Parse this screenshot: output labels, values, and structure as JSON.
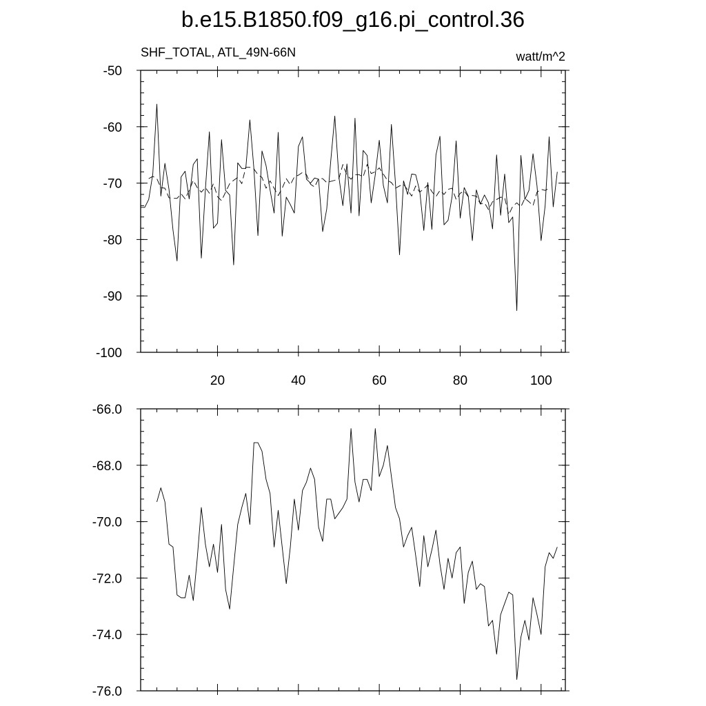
{
  "chart_data": [
    {
      "type": "line",
      "title": "b.e15.B1850.f09_g16.pi_control.36",
      "left_string": "SHF_TOTAL, ATL_49N-66N",
      "right_string": "watt/m^2",
      "xlim": [
        1,
        106
      ],
      "ylim": [
        -100,
        -50
      ],
      "xticks": [
        20,
        40,
        60,
        80,
        100
      ],
      "yticks": [
        -100,
        -90,
        -80,
        -70,
        -60,
        -50
      ],
      "ytick_labels": [
        "-100",
        "-90",
        "-80",
        "-70",
        "-60",
        "-50"
      ],
      "xtick_labels": [
        "20",
        "40",
        "60",
        "80",
        "100"
      ],
      "grid": false,
      "series": [
        {
          "style": "solid",
          "x_start": 1,
          "values": [
            -74.3,
            -74.3,
            -72.9,
            -68.4,
            -56.0,
            -72.3,
            -66.5,
            -71.1,
            -78.3,
            -83.8,
            -68.9,
            -67.9,
            -72.8,
            -66.7,
            -65.7,
            -83.3,
            -71.1,
            -60.9,
            -78.0,
            -77.1,
            -62.3,
            -71.3,
            -72.1,
            -84.5,
            -66.4,
            -67.4,
            -67.4,
            -58.8,
            -67.5,
            -79.3,
            -64.3,
            -66.9,
            -71.2,
            -75.3,
            -61.0,
            -79.4,
            -72.5,
            -73.8,
            -75.3,
            -63.5,
            -61.8,
            -69.3,
            -70.0,
            -69.1,
            -69.3,
            -78.6,
            -74.6,
            -66.1,
            -58.1,
            -68.9,
            -74.0,
            -66.6,
            -75.3,
            -58.5,
            -75.8,
            -64.2,
            -65.1,
            -73.5,
            -68.5,
            -62.4,
            -70.4,
            -73.5,
            -59.6,
            -70.1,
            -82.7,
            -69.6,
            -72.0,
            -68.4,
            -68.5,
            -71.4,
            -78.4,
            -69.9,
            -78.2,
            -65.0,
            -61.7,
            -77.4,
            -76.6,
            -72.4,
            -62.5,
            -76.2,
            -70.8,
            -72.3,
            -80.2,
            -71.2,
            -73.7,
            -72.1,
            -73.5,
            -78.1,
            -65.0,
            -75.7,
            -68.4,
            -77.0,
            -76.0,
            -92.6,
            -65.1,
            -72.9,
            -71.3,
            -64.8,
            -70.5,
            -80.2,
            -74.0,
            -61.8,
            -74.2,
            -68.0
          ]
        },
        {
          "style": "dashed",
          "x_start": 3,
          "values": [
            -69.2,
            -68.8,
            -69.2,
            -70.8,
            -70.9,
            -72.6,
            -72.7,
            -72.7,
            -71.9,
            -72.8,
            -71.3,
            -69.5,
            -70.8,
            -71.6,
            -70.8,
            -71.8,
            -70.1,
            -72.4,
            -73.1,
            -71.6,
            -70.1,
            -69.5,
            -69.0,
            -70.1,
            -67.2,
            -67.2,
            -67.5,
            -68.5,
            -69.0,
            -70.9,
            -69.6,
            -70.9,
            -72.2,
            -70.9,
            -69.2,
            -70.3,
            -68.9,
            -68.6,
            -68.1,
            -68.5,
            -70.2,
            -70.7,
            -69.2,
            -69.2,
            -69.9,
            -69.7,
            -69.5,
            -69.2,
            -66.7,
            -68.6,
            -69.3,
            -68.5,
            -68.5,
            -68.9,
            -66.7,
            -68.3,
            -68.0,
            -67.3,
            -68.4,
            -69.5,
            -69.9,
            -70.9,
            -70.5,
            -70.2,
            -71.2,
            -72.3,
            -70.5,
            -71.6,
            -71.0,
            -70.3,
            -71.5,
            -72.4,
            -71.3,
            -72.0,
            -71.1,
            -70.9,
            -72.9,
            -71.8,
            -71.4,
            -72.4,
            -72.2,
            -72.3,
            -73.7,
            -73.5,
            -74.7,
            -73.3,
            -72.9,
            -72.5,
            -72.6,
            -75.6,
            -74.1,
            -73.5,
            -74.2,
            -72.7,
            -73.3,
            -74.0,
            -71.6,
            -71.1,
            -71.3,
            -70.9
          ]
        }
      ]
    },
    {
      "type": "line",
      "xlim": [
        1,
        106
      ],
      "ylim": [
        -76.0,
        -66.0
      ],
      "xticks": [
        20,
        40,
        60,
        80,
        100
      ],
      "yticks": [
        -76.0,
        -74.0,
        -72.0,
        -70.0,
        -68.0,
        -66.0
      ],
      "ytick_labels": [
        "-76.0",
        "-74.0",
        "-72.0",
        "-70.0",
        "-68.0",
        "-66.0"
      ],
      "grid": false,
      "series": [
        {
          "style": "solid",
          "x_start": 5,
          "values": [
            -69.3,
            -68.8,
            -69.3,
            -70.8,
            -70.9,
            -72.6,
            -72.7,
            -72.7,
            -71.9,
            -72.8,
            -71.3,
            -69.5,
            -70.8,
            -71.6,
            -70.8,
            -71.8,
            -70.1,
            -72.4,
            -73.1,
            -71.6,
            -70.1,
            -69.5,
            -69.0,
            -70.1,
            -67.2,
            -67.2,
            -67.5,
            -68.5,
            -69.0,
            -70.9,
            -69.6,
            -70.9,
            -72.2,
            -70.9,
            -69.2,
            -70.3,
            -68.9,
            -68.6,
            -68.1,
            -68.5,
            -70.2,
            -70.7,
            -69.2,
            -69.2,
            -69.9,
            -69.7,
            -69.5,
            -69.2,
            -66.7,
            -68.6,
            -69.3,
            -68.5,
            -68.5,
            -68.9,
            -66.7,
            -68.4,
            -68.0,
            -67.3,
            -68.4,
            -69.5,
            -69.9,
            -70.9,
            -70.5,
            -70.2,
            -71.2,
            -72.3,
            -70.5,
            -71.6,
            -71.0,
            -70.3,
            -71.5,
            -72.4,
            -71.3,
            -72.0,
            -71.1,
            -70.9,
            -72.9,
            -71.8,
            -71.4,
            -72.4,
            -72.2,
            -72.3,
            -73.7,
            -73.5,
            -74.7,
            -73.3,
            -72.9,
            -72.5,
            -72.6,
            -75.6,
            -74.1,
            -73.5,
            -74.2,
            -72.7,
            -73.3,
            -74.0,
            -71.6,
            -71.1,
            -71.3,
            -70.9
          ]
        }
      ]
    }
  ]
}
